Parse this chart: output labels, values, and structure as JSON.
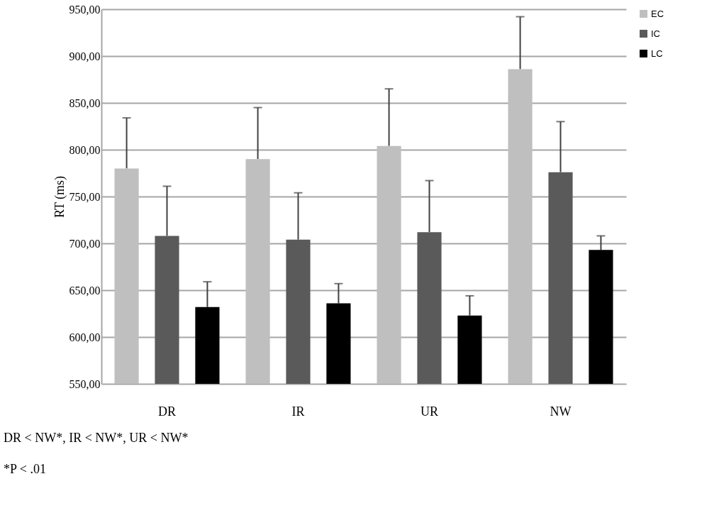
{
  "chart_data": {
    "type": "bar",
    "ylabel": "RT (ms)",
    "categories": [
      "DR",
      "IR",
      "UR",
      "NW"
    ],
    "series": [
      {
        "name": "EC",
        "color": "#bfbfbf",
        "values": [
          780,
          790,
          804,
          886
        ],
        "errors": [
          [
            780,
            834
          ],
          [
            790,
            845
          ],
          [
            804,
            865
          ],
          [
            886,
            942
          ]
        ]
      },
      {
        "name": "IC",
        "color": "#5a5a5a",
        "values": [
          708,
          704,
          712,
          776
        ],
        "errors": [
          [
            708,
            761
          ],
          [
            704,
            754
          ],
          [
            712,
            767
          ],
          [
            776,
            830
          ]
        ]
      },
      {
        "name": "LC",
        "color": "#000000",
        "values": [
          632,
          636,
          623,
          693
        ],
        "errors": [
          [
            632,
            659
          ],
          [
            636,
            657
          ],
          [
            623,
            644
          ],
          [
            693,
            708
          ]
        ]
      }
    ],
    "ylim": [
      550,
      950
    ],
    "yticks": [
      {
        "value": 550,
        "label": "550,00"
      },
      {
        "value": 600,
        "label": "600,00"
      },
      {
        "value": 650,
        "label": "650,00"
      },
      {
        "value": 700,
        "label": "700,00"
      },
      {
        "value": 750,
        "label": "750,00"
      },
      {
        "value": 800,
        "label": "800,00"
      },
      {
        "value": 850,
        "label": "850,00"
      },
      {
        "value": 900,
        "label": "900,00"
      },
      {
        "value": 950,
        "label": "950,00"
      }
    ],
    "grid": "y",
    "legend": "top right",
    "annotations": [
      "DR < NW*, IR < NW*, UR < NW*",
      "*P < .01"
    ]
  }
}
